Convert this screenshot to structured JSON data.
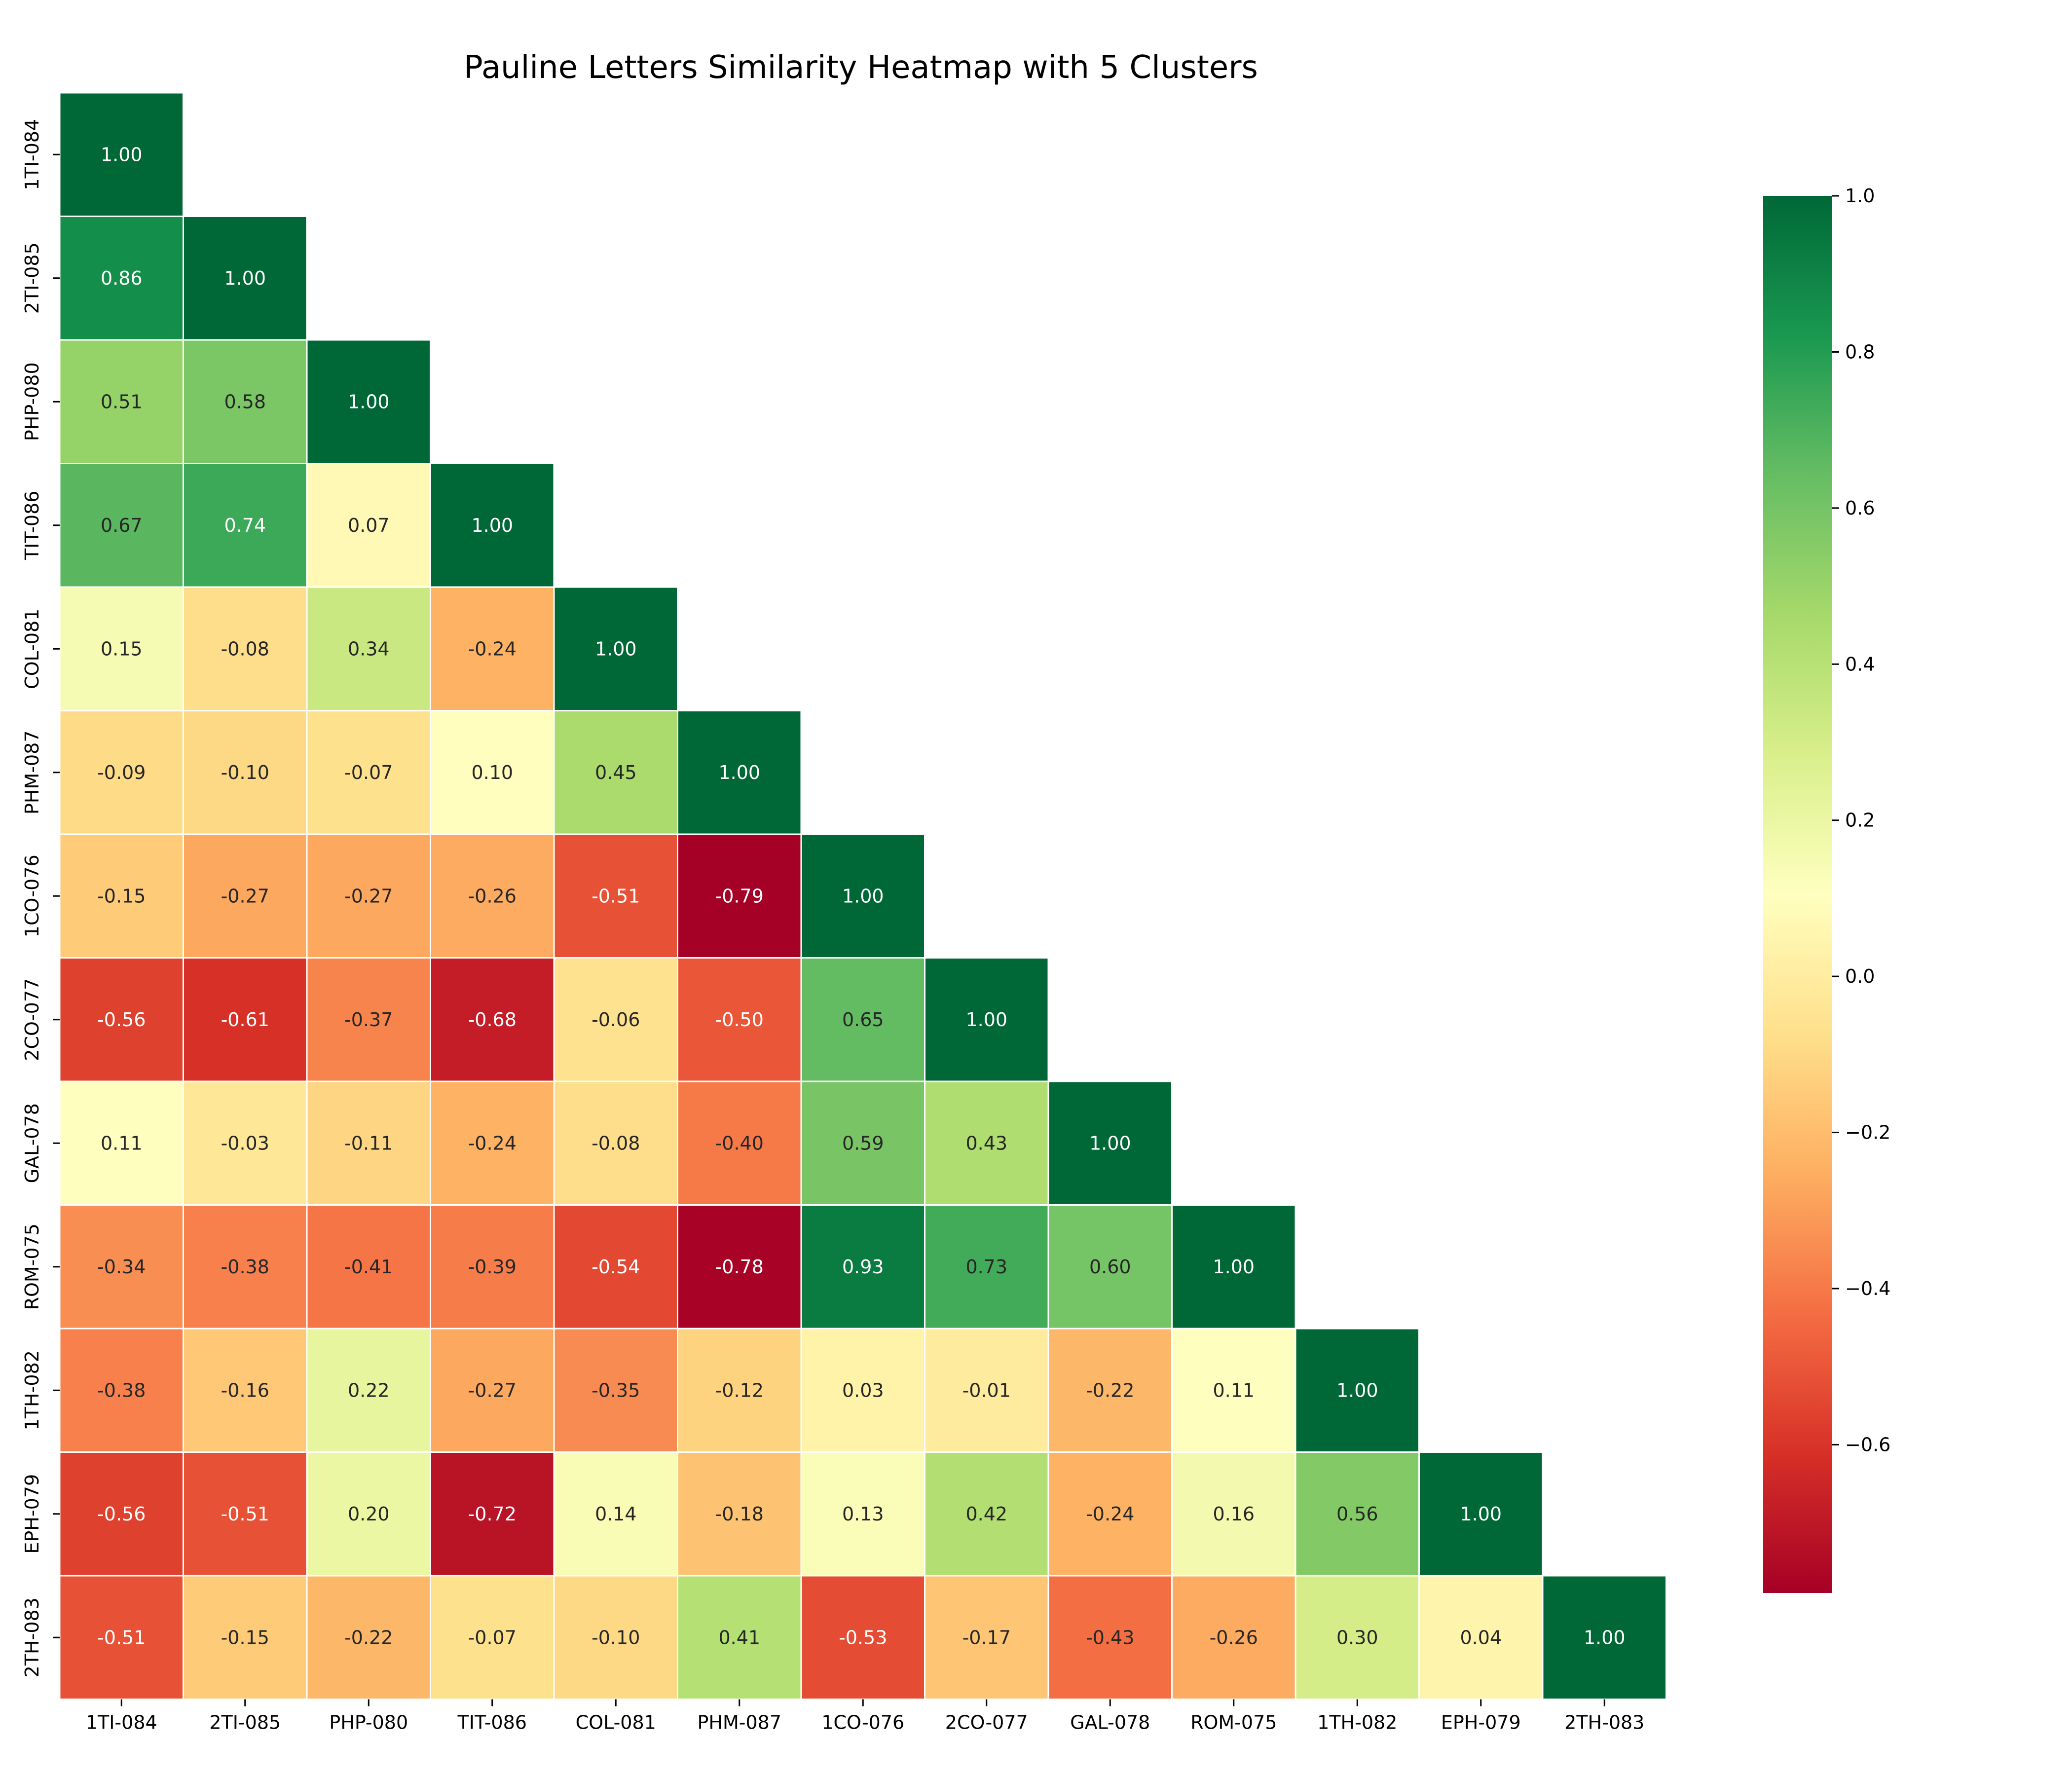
{
  "chart_data": {
    "type": "heatmap",
    "title": "Pauline Letters Similarity Heatmap with 5 Clusters",
    "labels": [
      "1TI-084",
      "2TI-085",
      "PHP-080",
      "TIT-086",
      "COL-081",
      "PHM-087",
      "1CO-076",
      "2CO-077",
      "GAL-078",
      "ROM-075",
      "1TH-082",
      "EPH-079",
      "2TH-083"
    ],
    "matrix": [
      [
        1.0
      ],
      [
        0.86,
        1.0
      ],
      [
        0.51,
        0.58,
        1.0
      ],
      [
        0.67,
        0.74,
        0.07,
        1.0
      ],
      [
        0.15,
        -0.08,
        0.34,
        -0.24,
        1.0
      ],
      [
        -0.09,
        -0.1,
        -0.07,
        0.1,
        0.45,
        1.0
      ],
      [
        -0.15,
        -0.27,
        -0.27,
        -0.26,
        -0.51,
        -0.79,
        1.0
      ],
      [
        -0.56,
        -0.61,
        -0.37,
        -0.68,
        -0.06,
        -0.5,
        0.65,
        1.0
      ],
      [
        0.11,
        -0.03,
        -0.11,
        -0.24,
        -0.08,
        -0.4,
        0.59,
        0.43,
        1.0
      ],
      [
        -0.34,
        -0.38,
        -0.41,
        -0.39,
        -0.54,
        -0.78,
        0.93,
        0.73,
        0.6,
        1.0
      ],
      [
        -0.38,
        -0.16,
        0.22,
        -0.27,
        -0.35,
        -0.12,
        0.03,
        -0.01,
        -0.22,
        0.11,
        1.0
      ],
      [
        -0.56,
        -0.51,
        0.2,
        -0.72,
        0.14,
        -0.18,
        0.13,
        0.42,
        -0.24,
        0.16,
        0.56,
        1.0
      ],
      [
        -0.51,
        -0.15,
        -0.22,
        -0.07,
        -0.1,
        0.41,
        -0.53,
        -0.17,
        -0.43,
        -0.26,
        0.3,
        0.04,
        1.0
      ]
    ],
    "value_format": "0.00",
    "colormap": "RdYlGn",
    "vmin": -0.79,
    "vmax": 1.0,
    "colorbar_ticks": [
      1.0,
      0.8,
      0.6,
      0.4,
      0.2,
      0.0,
      -0.2,
      -0.4,
      -0.6
    ],
    "colorbar_tick_labels": [
      "1.0",
      "0.8",
      "0.6",
      "0.4",
      "0.2",
      "0.0",
      "−0.2",
      "−0.4",
      "−0.6"
    ],
    "mask": "upper-triangle",
    "grid": false,
    "colorbar": "right"
  }
}
